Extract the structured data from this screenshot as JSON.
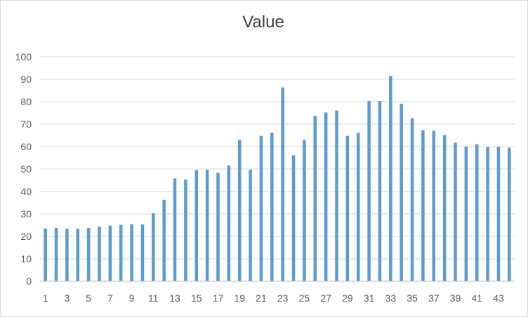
{
  "chart_data": {
    "type": "bar",
    "title": "Value",
    "xlabel": "",
    "ylabel": "",
    "ylim": [
      0,
      100
    ],
    "y_ticks": [
      0,
      10,
      20,
      30,
      40,
      50,
      60,
      70,
      80,
      90,
      100
    ],
    "x_tick_labels": [
      "1",
      "3",
      "5",
      "7",
      "9",
      "11",
      "13",
      "15",
      "17",
      "19",
      "21",
      "23",
      "25",
      "27",
      "29",
      "31",
      "33",
      "35",
      "37",
      "39",
      "41",
      "43"
    ],
    "categories": [
      1,
      2,
      3,
      4,
      5,
      6,
      7,
      8,
      9,
      10,
      11,
      12,
      13,
      14,
      15,
      16,
      17,
      18,
      19,
      20,
      21,
      22,
      23,
      24,
      25,
      26,
      27,
      28,
      29,
      30,
      31,
      32,
      33,
      34,
      35,
      36,
      37,
      38,
      39,
      40,
      41,
      42,
      43,
      44
    ],
    "values": [
      23.5,
      23.8,
      23.4,
      23.4,
      23.7,
      24.4,
      24.8,
      25.1,
      25.4,
      25.3,
      30.3,
      36.3,
      45.8,
      45.3,
      49.5,
      49.7,
      48.3,
      51.6,
      63.0,
      49.7,
      64.8,
      66.2,
      86.4,
      56.1,
      63.0,
      73.7,
      75.2,
      76.1,
      64.8,
      66.2,
      80.3,
      80.3,
      91.5,
      79.1,
      72.6,
      67.3,
      67.0,
      65.1,
      61.7,
      60.0,
      61.0,
      59.8,
      59.8,
      59.5
    ],
    "grid": true,
    "legend": "none",
    "colors": {
      "bar": "#5b9bd5",
      "grid": "#d9d9d9",
      "axis": "#bfbfbf",
      "text": "#595959",
      "title": "#404040"
    }
  }
}
